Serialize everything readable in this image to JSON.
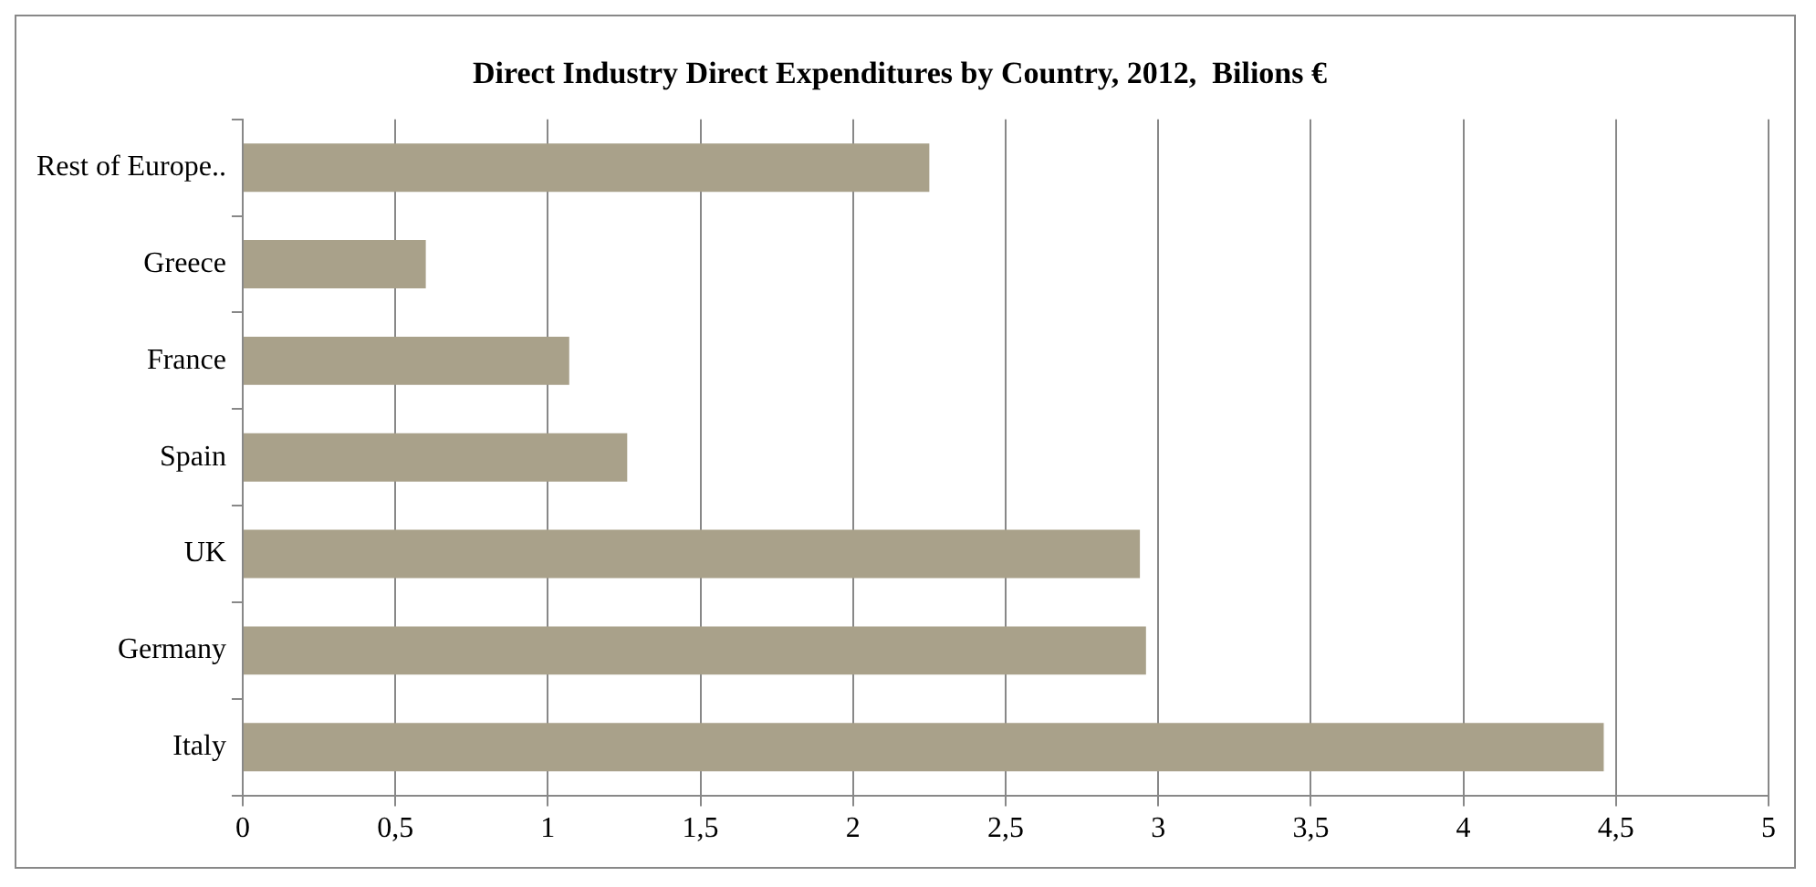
{
  "chart_data": {
    "type": "bar",
    "orientation": "horizontal",
    "title": "Direct Industry Direct Expenditures by Country, 2012,  Bilions €",
    "categories": [
      "Rest of Europe..",
      "Greece",
      "France",
      "Spain",
      "UK",
      "Germany",
      "Italy"
    ],
    "values": [
      2.25,
      0.6,
      1.07,
      1.26,
      2.94,
      2.96,
      4.46
    ],
    "color": "#a9a18a",
    "xlim": [
      0,
      5
    ],
    "xticks": [
      0,
      {
        "value": 0.5,
        "label": "0,5"
      },
      1,
      {
        "value": 1.5,
        "label": "1,5"
      },
      2,
      {
        "value": 2.5,
        "label": "2,5"
      },
      3,
      {
        "value": 3.5,
        "label": "3,5"
      },
      4,
      {
        "value": 4.5,
        "label": "4,5"
      },
      5
    ],
    "grid": "x",
    "legend": false
  }
}
